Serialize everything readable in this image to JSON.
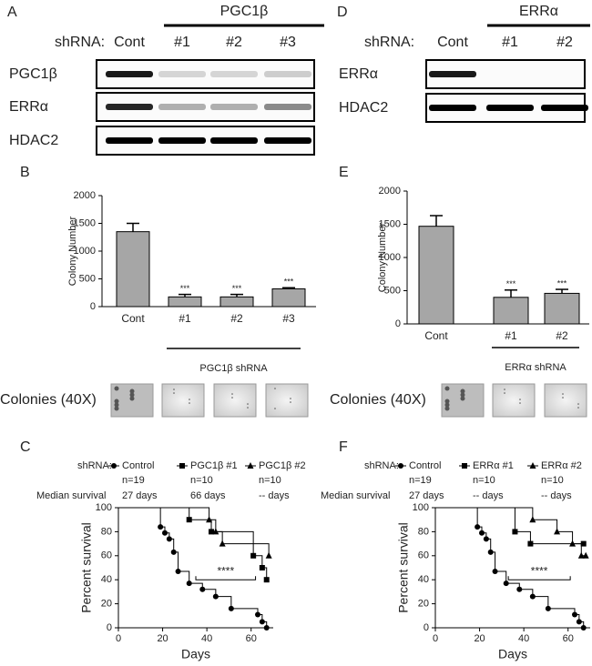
{
  "panel_a": {
    "letter": "A",
    "group": "PGC1β",
    "shrna": "shRNA:",
    "lanes": [
      "Cont",
      "#1",
      "#2",
      "#3"
    ],
    "rows": [
      "PGC1β",
      "ERRα",
      "HDAC2"
    ]
  },
  "panel_d": {
    "letter": "D",
    "group": "ERRα",
    "shrna": "shRNA:",
    "lanes": [
      "Cont",
      "#1",
      "#2"
    ],
    "rows": [
      "ERRα",
      "HDAC2"
    ]
  },
  "colonies": [
    "Colonies (40X)",
    "Colonies (40X)"
  ],
  "chart_data": [
    {
      "type": "bar",
      "panel": "B",
      "y_label": "Colony Number",
      "categories": [
        "Cont",
        "#1",
        "#2",
        "#3"
      ],
      "values": [
        1350,
        175,
        175,
        320
      ],
      "errors": [
        150,
        45,
        45,
        20
      ],
      "significance": [
        null,
        "***",
        "***",
        "***"
      ],
      "group_label": "PGC1β shRNA",
      "ylim": [
        0,
        2000
      ],
      "yticks": [
        0,
        500,
        1000,
        1500,
        2000
      ],
      "color": "#a6a6a6"
    },
    {
      "type": "bar",
      "panel": "E",
      "y_label": "Colony Number",
      "categories": [
        "Cont",
        "#1",
        "#2"
      ],
      "values": [
        1470,
        400,
        460
      ],
      "errors": [
        160,
        110,
        60
      ],
      "significance": [
        null,
        "***",
        "***"
      ],
      "group_label": "ERRα shRNA",
      "ylim": [
        0,
        2000
      ],
      "yticks": [
        0,
        500,
        1000,
        1500,
        2000
      ],
      "color": "#a6a6a6"
    },
    {
      "type": "survival",
      "panel": "C",
      "legend_title": "shRNA:",
      "median_label": "Median survival",
      "x_label": "Days",
      "y_label": "Percent survival",
      "xlim": [
        0,
        70
      ],
      "ylim": [
        0,
        100
      ],
      "xticks": [
        0,
        20,
        40,
        60
      ],
      "yticks": [
        0,
        20,
        40,
        60,
        80,
        100
      ],
      "significance": "****",
      "series": [
        {
          "name": "Control",
          "marker": "circle",
          "n": "n=19",
          "median": "27 days",
          "x": [
            0,
            19,
            21,
            23,
            25,
            27,
            32,
            38,
            44,
            51,
            63,
            65,
            67
          ],
          "values": [
            100,
            84,
            79,
            74,
            63,
            47,
            37,
            32,
            26,
            16,
            11,
            5,
            0
          ]
        },
        {
          "name": "PGC1β #1",
          "marker": "square",
          "n": "n=10",
          "median": "66 days",
          "x": [
            0,
            32,
            42,
            61,
            65,
            67
          ],
          "values": [
            100,
            90,
            80,
            60,
            50,
            40
          ]
        },
        {
          "name": "PGC1β #2",
          "marker": "triangle",
          "n": "n=10",
          "median": "-- days",
          "x": [
            0,
            41,
            44,
            47,
            68
          ],
          "values": [
            100,
            90,
            80,
            70,
            60
          ]
        }
      ]
    },
    {
      "type": "survival",
      "panel": "F",
      "legend_title": "shRNA:",
      "median_label": "Median survival",
      "x_label": "Days",
      "y_label": "Percent survival",
      "xlim": [
        0,
        70
      ],
      "ylim": [
        0,
        100
      ],
      "xticks": [
        0,
        20,
        40,
        60
      ],
      "yticks": [
        0,
        20,
        40,
        60,
        80,
        100
      ],
      "significance": "****",
      "series": [
        {
          "name": "Control",
          "marker": "circle",
          "n": "n=19",
          "median": "27 days",
          "x": [
            0,
            19,
            21,
            23,
            25,
            27,
            32,
            38,
            44,
            51,
            63,
            65,
            67
          ],
          "values": [
            100,
            84,
            79,
            74,
            63,
            47,
            37,
            32,
            26,
            16,
            11,
            5,
            0
          ]
        },
        {
          "name": "ERRα #1",
          "marker": "square",
          "n": "n=10",
          "median": "-- days",
          "x": [
            0,
            36,
            43,
            67
          ],
          "values": [
            100,
            80,
            70,
            70
          ]
        },
        {
          "name": "ERRα #2",
          "marker": "triangle",
          "n": "n=10",
          "median": "-- days",
          "x": [
            0,
            44,
            55,
            62,
            66,
            68
          ],
          "values": [
            100,
            90,
            80,
            70,
            60,
            60
          ]
        }
      ]
    }
  ]
}
